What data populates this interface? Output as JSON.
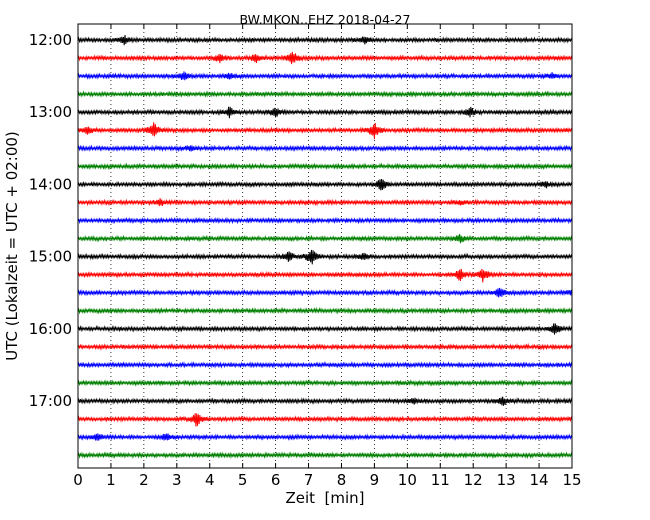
{
  "chart_data": {
    "type": "line",
    "title": "BW.MKON..EHZ 2018-04-27",
    "xlabel": "Zeit  [min]",
    "ylabel": "UTC (Lokalzeit = UTC + 02:00)",
    "xlim": [
      0,
      15
    ],
    "x_ticks": [
      "0",
      "1",
      "2",
      "3",
      "4",
      "5",
      "6",
      "7",
      "8",
      "9",
      "10",
      "11",
      "12",
      "13",
      "14",
      "15"
    ],
    "y_ticks": [
      "12:00",
      "13:00",
      "14:00",
      "15:00",
      "16:00",
      "17:00"
    ],
    "grid": "vertical dotted",
    "trace_colors": [
      "#000000",
      "#ff0000",
      "#0000ff",
      "#008000"
    ],
    "traces": [
      {
        "start": "12:00",
        "events": [
          {
            "t": 1.4,
            "amp": 0.5
          },
          {
            "t": 8.7,
            "amp": 0.5
          }
        ]
      },
      {
        "start": "12:15",
        "events": [
          {
            "t": 4.3,
            "amp": 0.5
          },
          {
            "t": 5.4,
            "amp": 0.5
          },
          {
            "t": 6.5,
            "amp": 0.9
          }
        ]
      },
      {
        "start": "12:30",
        "events": [
          {
            "t": 3.2,
            "amp": 0.5
          },
          {
            "t": 4.6,
            "amp": 0.4
          },
          {
            "t": 14.4,
            "amp": 0.3
          }
        ]
      },
      {
        "start": "12:45",
        "events": []
      },
      {
        "start": "13:00",
        "events": [
          {
            "t": 4.6,
            "amp": 0.6
          },
          {
            "t": 6.0,
            "amp": 0.6
          },
          {
            "t": 11.9,
            "amp": 0.6
          }
        ]
      },
      {
        "start": "13:15",
        "events": [
          {
            "t": 0.3,
            "amp": 0.5
          },
          {
            "t": 2.3,
            "amp": 0.9
          },
          {
            "t": 9.0,
            "amp": 1.0
          }
        ]
      },
      {
        "start": "13:30",
        "events": [
          {
            "t": 3.4,
            "amp": 0.3
          }
        ]
      },
      {
        "start": "13:45",
        "events": []
      },
      {
        "start": "14:00",
        "events": [
          {
            "t": 9.2,
            "amp": 0.8
          },
          {
            "t": 14.2,
            "amp": 0.4
          }
        ]
      },
      {
        "start": "14:15",
        "events": [
          {
            "t": 2.5,
            "amp": 0.4
          },
          {
            "t": 11.6,
            "amp": 0.3
          }
        ]
      },
      {
        "start": "14:30",
        "events": []
      },
      {
        "start": "14:45",
        "events": [
          {
            "t": 11.6,
            "amp": 0.5
          }
        ]
      },
      {
        "start": "15:00",
        "events": [
          {
            "t": 6.4,
            "amp": 0.6
          },
          {
            "t": 7.1,
            "amp": 1.0
          },
          {
            "t": 8.7,
            "amp": 0.4
          }
        ]
      },
      {
        "start": "15:15",
        "events": [
          {
            "t": 11.6,
            "amp": 0.8
          },
          {
            "t": 12.3,
            "amp": 0.8
          }
        ]
      },
      {
        "start": "15:30",
        "events": [
          {
            "t": 12.8,
            "amp": 0.6
          },
          {
            "t": 15.0,
            "amp": 0.4
          }
        ]
      },
      {
        "start": "15:45",
        "events": []
      },
      {
        "start": "16:00",
        "events": [
          {
            "t": 14.5,
            "amp": 0.8
          }
        ]
      },
      {
        "start": "16:15",
        "events": []
      },
      {
        "start": "16:30",
        "events": []
      },
      {
        "start": "16:45",
        "events": []
      },
      {
        "start": "17:00",
        "events": [
          {
            "t": 10.2,
            "amp": 0.3
          },
          {
            "t": 12.9,
            "amp": 0.5
          }
        ]
      },
      {
        "start": "17:15",
        "events": [
          {
            "t": 3.6,
            "amp": 0.9
          }
        ]
      },
      {
        "start": "17:30",
        "events": [
          {
            "t": 0.6,
            "amp": 0.4
          },
          {
            "t": 2.7,
            "amp": 0.5
          }
        ]
      },
      {
        "start": "17:45",
        "events": []
      }
    ]
  }
}
